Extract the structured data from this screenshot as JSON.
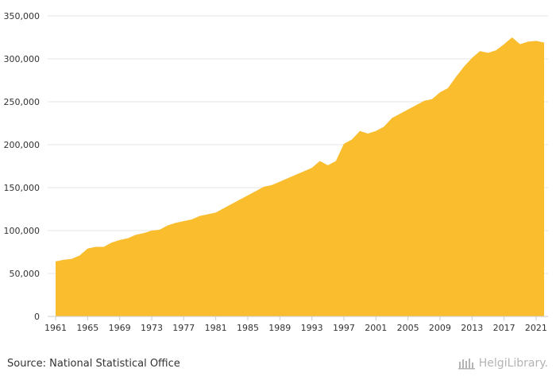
{
  "chart_data": {
    "type": "area",
    "title": "",
    "xlabel": "",
    "ylabel": "",
    "ylim": [
      0,
      350000
    ],
    "y_ticks": [
      0,
      50000,
      100000,
      150000,
      200000,
      250000,
      300000,
      350000
    ],
    "y_tick_labels": [
      "0",
      "50,000",
      "100,000",
      "150,000",
      "200,000",
      "250,000",
      "300,000",
      "350,000"
    ],
    "x_tick_labels": [
      "1961",
      "1965",
      "1969",
      "1973",
      "1977",
      "1981",
      "1985",
      "1989",
      "1993",
      "1997",
      "2001",
      "2005",
      "2009",
      "2013",
      "2017",
      "2021"
    ],
    "grid": true,
    "legend": "none",
    "x": [
      1961,
      1962,
      1963,
      1964,
      1965,
      1966,
      1967,
      1968,
      1969,
      1970,
      1971,
      1972,
      1973,
      1974,
      1975,
      1976,
      1977,
      1978,
      1979,
      1980,
      1981,
      1982,
      1983,
      1984,
      1985,
      1986,
      1987,
      1988,
      1989,
      1990,
      1991,
      1992,
      1993,
      1994,
      1995,
      1996,
      1997,
      1998,
      1999,
      2000,
      2001,
      2002,
      2003,
      2004,
      2005,
      2006,
      2007,
      2008,
      2009,
      2010,
      2011,
      2012,
      2013,
      2014,
      2015,
      2016,
      2017,
      2018,
      2019,
      2020,
      2021,
      2022
    ],
    "series": [
      {
        "color": "#f9bd2e",
        "values": [
          64000,
          66000,
          67000,
          71000,
          79000,
          81000,
          81000,
          86000,
          89000,
          91000,
          95000,
          97000,
          100000,
          101000,
          106000,
          109000,
          111000,
          113000,
          117000,
          119000,
          121000,
          126000,
          131000,
          136000,
          141000,
          146000,
          151000,
          153000,
          157000,
          161000,
          165000,
          169000,
          173000,
          181000,
          176000,
          181000,
          201000,
          206000,
          216000,
          213000,
          216000,
          221000,
          231000,
          236000,
          241000,
          246000,
          251000,
          253000,
          261000,
          266000,
          279000,
          291000,
          301000,
          309000,
          307000,
          310000,
          317000,
          325000,
          317000,
          320000,
          321000,
          319000
        ]
      }
    ]
  },
  "footer": {
    "source": "Source: National Statistical Office",
    "brand": "HelgiLibrary."
  },
  "colors": {
    "area": "#f9bd2e",
    "grid": "#e6e6e6",
    "axis": "#cccccc",
    "brand": "#b4b4b4"
  }
}
